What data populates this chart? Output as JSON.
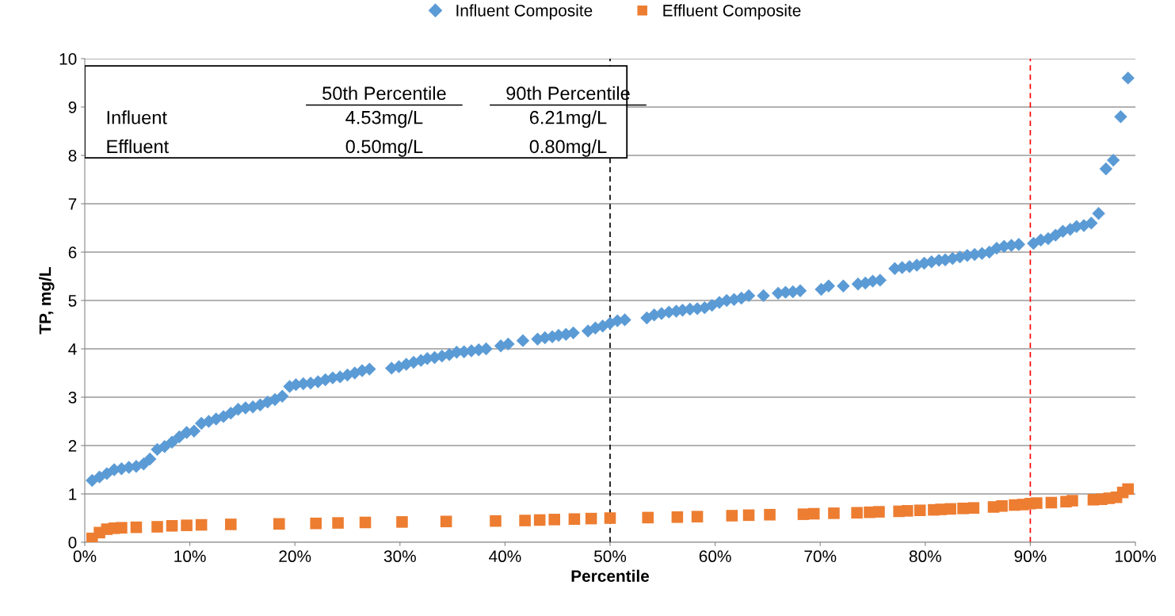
{
  "chart_data": {
    "type": "scatter",
    "xlabel": "Percentile",
    "ylabel": "TP, mg/L",
    "xlim": [
      0,
      100
    ],
    "ylim": [
      0,
      10
    ],
    "xticks": [
      {
        "value": 0,
        "label": "0%"
      },
      {
        "value": 10,
        "label": "10%"
      },
      {
        "value": 20,
        "label": "20%"
      },
      {
        "value": 30,
        "label": "30%"
      },
      {
        "value": 40,
        "label": "40%"
      },
      {
        "value": 50,
        "label": "50%"
      },
      {
        "value": 60,
        "label": "60%"
      },
      {
        "value": 70,
        "label": "70%"
      },
      {
        "value": 80,
        "label": "80%"
      },
      {
        "value": 90,
        "label": "90%"
      },
      {
        "value": 100,
        "label": "100%"
      }
    ],
    "yticks": [
      0,
      1,
      2,
      3,
      4,
      5,
      6,
      7,
      8,
      9,
      10
    ],
    "grid": "y",
    "legend": "top",
    "series": [
      {
        "name": "Influent Composite",
        "color": "#5b9bd5",
        "marker": "diamond",
        "x": [
          0.7,
          1.4,
          2.1,
          2.8,
          3.5,
          4.2,
          4.9,
          5.6,
          6.2,
          6.9,
          7.6,
          8.3,
          9.0,
          9.7,
          10.4,
          11.1,
          11.8,
          12.5,
          13.2,
          13.9,
          14.6,
          15.3,
          16.0,
          16.7,
          17.4,
          18.1,
          18.8,
          19.5,
          20.1,
          20.8,
          21.5,
          22.2,
          22.9,
          23.6,
          24.3,
          25.0,
          25.7,
          26.4,
          27.1,
          29.2,
          29.9,
          30.6,
          31.3,
          32.0,
          32.6,
          33.3,
          34.0,
          34.7,
          35.4,
          36.1,
          36.8,
          37.5,
          38.2,
          39.6,
          40.3,
          41.7,
          43.1,
          43.8,
          44.5,
          45.1,
          45.8,
          46.5,
          47.9,
          48.6,
          49.3,
          50.0,
          50.7,
          51.4,
          53.5,
          54.2,
          54.9,
          55.6,
          56.3,
          56.9,
          57.6,
          58.3,
          59.0,
          59.7,
          60.4,
          61.1,
          61.8,
          62.5,
          63.2,
          64.6,
          66.0,
          66.7,
          67.4,
          68.1,
          70.1,
          70.8,
          72.2,
          73.6,
          74.3,
          75.0,
          75.7,
          77.1,
          77.8,
          78.5,
          79.2,
          79.9,
          80.6,
          81.3,
          81.9,
          82.6,
          83.3,
          84.0,
          84.7,
          85.4,
          86.1,
          86.8,
          87.5,
          88.2,
          88.9,
          90.3,
          91.0,
          91.7,
          92.4,
          93.1,
          93.8,
          94.4,
          95.1,
          95.8,
          96.5,
          97.2,
          97.9,
          98.6,
          99.3
        ],
        "values": [
          1.28,
          1.35,
          1.42,
          1.5,
          1.52,
          1.55,
          1.57,
          1.62,
          1.72,
          1.92,
          1.98,
          2.07,
          2.18,
          2.27,
          2.3,
          2.46,
          2.5,
          2.55,
          2.6,
          2.67,
          2.75,
          2.78,
          2.8,
          2.84,
          2.9,
          2.95,
          3.02,
          3.22,
          3.26,
          3.28,
          3.29,
          3.32,
          3.36,
          3.4,
          3.42,
          3.46,
          3.5,
          3.55,
          3.58,
          3.6,
          3.63,
          3.68,
          3.72,
          3.76,
          3.8,
          3.82,
          3.85,
          3.88,
          3.93,
          3.94,
          3.96,
          3.98,
          4.0,
          4.06,
          4.1,
          4.17,
          4.2,
          4.23,
          4.25,
          4.28,
          4.3,
          4.33,
          4.37,
          4.43,
          4.47,
          4.53,
          4.58,
          4.6,
          4.64,
          4.7,
          4.73,
          4.76,
          4.78,
          4.8,
          4.82,
          4.83,
          4.85,
          4.9,
          4.96,
          5.0,
          5.02,
          5.05,
          5.1,
          5.1,
          5.15,
          5.17,
          5.18,
          5.2,
          5.23,
          5.3,
          5.3,
          5.34,
          5.36,
          5.4,
          5.42,
          5.66,
          5.68,
          5.7,
          5.73,
          5.77,
          5.8,
          5.83,
          5.84,
          5.87,
          5.9,
          5.93,
          5.95,
          5.97,
          6.0,
          6.08,
          6.12,
          6.14,
          6.16,
          6.18,
          6.25,
          6.28,
          6.35,
          6.43,
          6.47,
          6.53,
          6.55,
          6.6,
          6.8,
          7.72,
          7.9,
          8.8,
          9.6
        ]
      },
      {
        "name": "Effluent Composite",
        "color": "#ed7d31",
        "marker": "square",
        "x": [
          0.7,
          1.4,
          2.1,
          2.8,
          3.5,
          4.9,
          6.9,
          8.3,
          9.7,
          11.1,
          13.9,
          18.5,
          22.0,
          24.1,
          26.7,
          30.2,
          34.4,
          39.1,
          41.9,
          43.3,
          44.7,
          46.6,
          48.2,
          50.0,
          53.6,
          56.4,
          58.3,
          61.6,
          63.2,
          65.2,
          68.4,
          69.4,
          71.3,
          73.5,
          74.7,
          75.6,
          77.5,
          78.3,
          79.5,
          80.8,
          81.5,
          82.4,
          83.6,
          84.6,
          86.5,
          87.3,
          88.5,
          89.3,
          90.0,
          90.6,
          92.0,
          93.4,
          94.0,
          96.0,
          96.8,
          97.5,
          98.2,
          98.8,
          99.3
        ],
        "values": [
          0.08,
          0.2,
          0.27,
          0.29,
          0.3,
          0.31,
          0.32,
          0.34,
          0.35,
          0.36,
          0.37,
          0.38,
          0.39,
          0.4,
          0.41,
          0.42,
          0.43,
          0.44,
          0.45,
          0.46,
          0.47,
          0.48,
          0.49,
          0.5,
          0.51,
          0.52,
          0.53,
          0.55,
          0.56,
          0.57,
          0.58,
          0.59,
          0.6,
          0.61,
          0.62,
          0.63,
          0.64,
          0.65,
          0.66,
          0.67,
          0.68,
          0.69,
          0.7,
          0.71,
          0.73,
          0.75,
          0.77,
          0.78,
          0.8,
          0.81,
          0.82,
          0.84,
          0.86,
          0.88,
          0.89,
          0.91,
          0.93,
          1.03,
          1.1
        ]
      }
    ],
    "ref_lines": [
      {
        "axis": "x",
        "value": 50,
        "color": "#000000",
        "line_style": "dashed"
      },
      {
        "axis": "x",
        "value": 90,
        "color": "#ff0000",
        "line_style": "dashed"
      }
    ],
    "annotations": [
      "50th Percentile",
      "90th Percentile",
      "Influent",
      "4.53mg/L",
      "6.21mg/L",
      "Effluent",
      "0.50mg/L",
      "0.80mg/L"
    ]
  }
}
